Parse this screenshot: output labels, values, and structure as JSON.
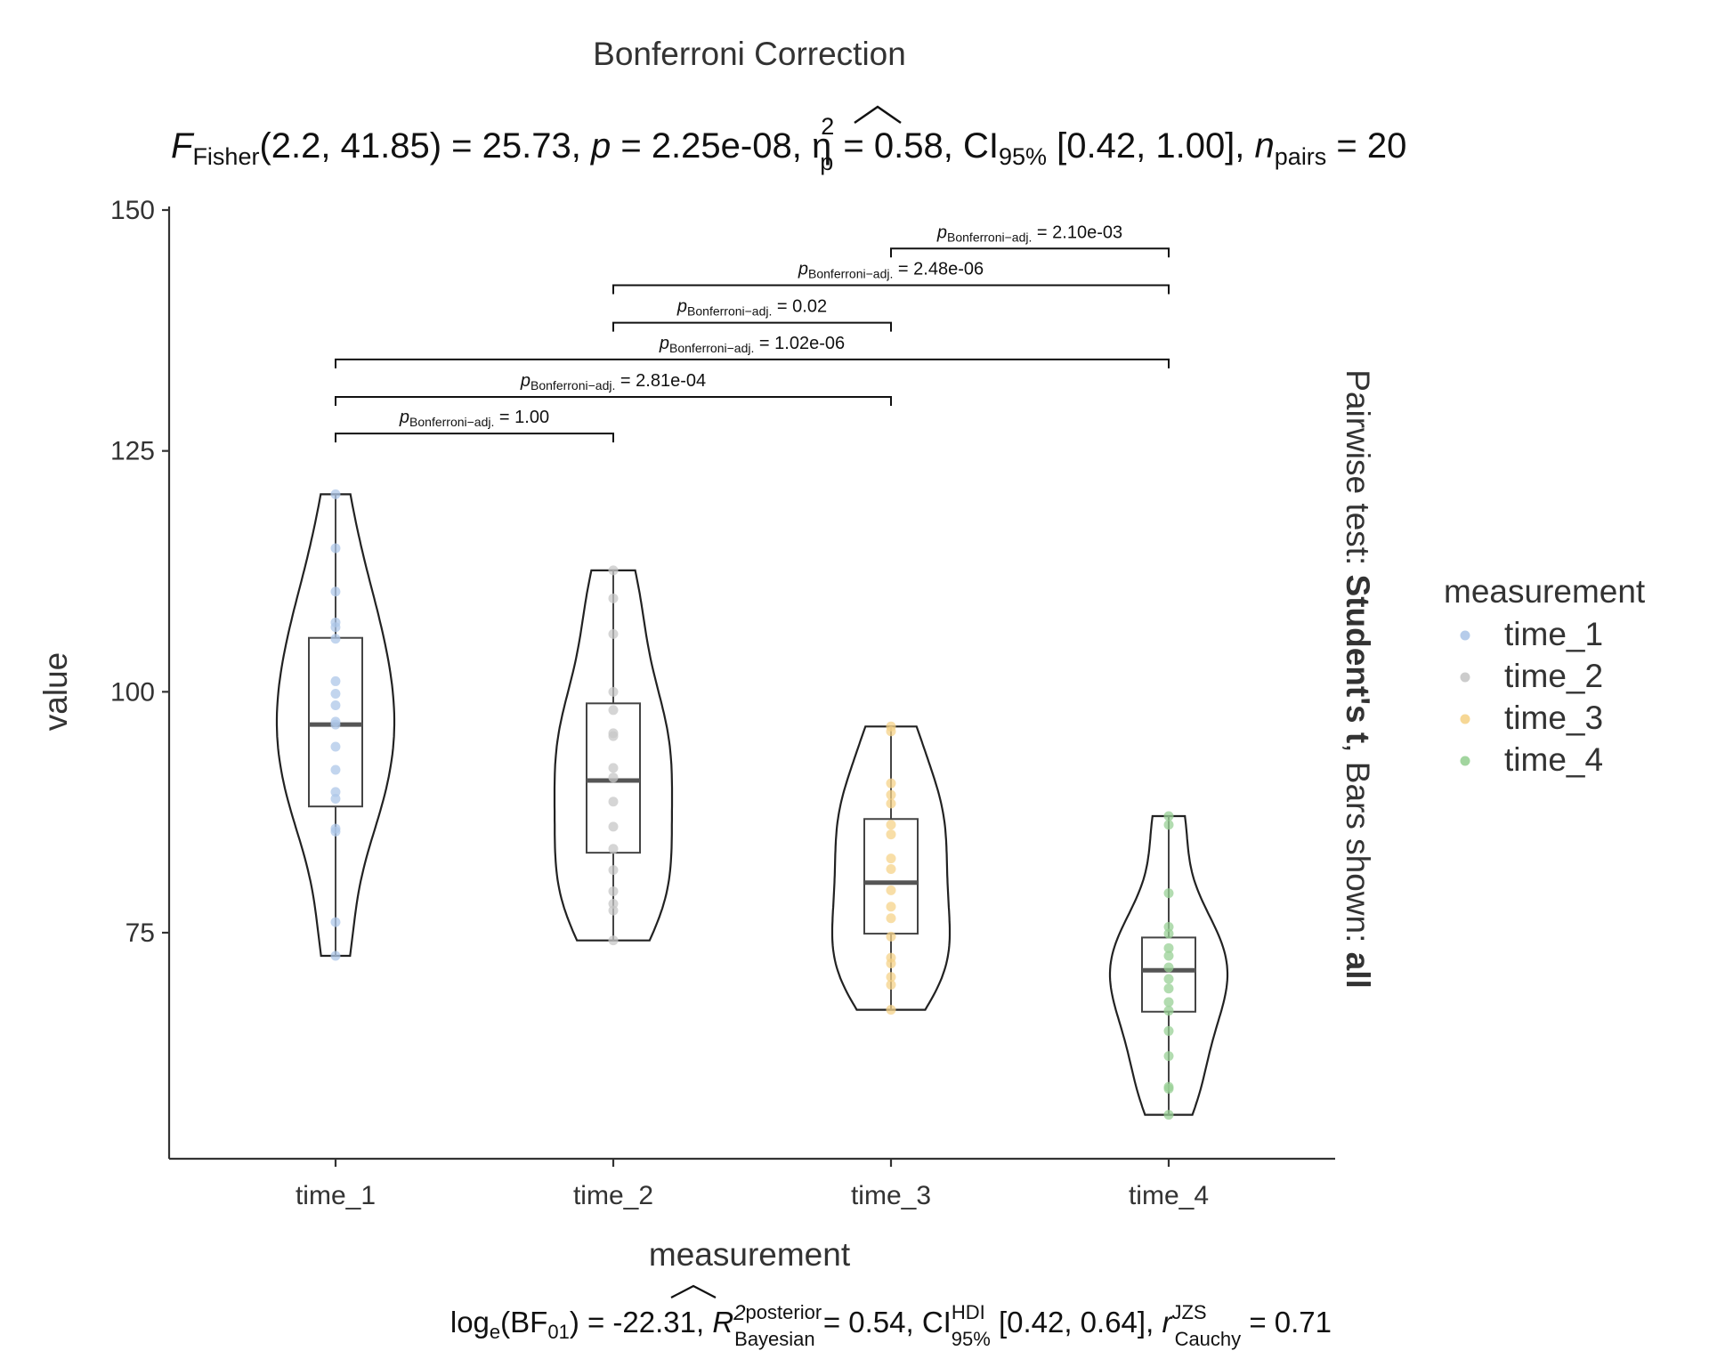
{
  "chart_data": {
    "type": "violin",
    "title": "Bonferroni Correction",
    "subtitle": {
      "statistic_symbol": "F",
      "statistic_sub": "Fisher",
      "df": "(2.2, 41.85)",
      "statistic_value": "25.73",
      "p_symbol": "p",
      "p_value": "2.25e-08",
      "effect_symbol": "η",
      "effect_sup": "2",
      "effect_sub": "p",
      "effect_value": "0.58",
      "ci_label": "CI",
      "ci_sub": "95%",
      "ci_range": "[0.42, 1.00]",
      "n_symbol": "n",
      "n_sub": "pairs",
      "n_value": "20"
    },
    "caption": {
      "bf_prefix": "log",
      "bf_base": "e",
      "bf_label": "BF",
      "bf_sub": "01",
      "bf_value": "-22.31",
      "r2_symbol": "R",
      "r2_sup": "2",
      "r2_sup_word": "posterior",
      "r2_sub": "Bayesian",
      "r2_value": "0.54",
      "ci_label": "CI",
      "ci_sup": "HDI",
      "ci_sub": "95%",
      "ci_range": "[0.42, 0.64]",
      "r_symbol": "r",
      "r_sup": "JZS",
      "r_sub": "Cauchy",
      "r_value": "0.71"
    },
    "xlabel": "measurement",
    "ylabel": "value",
    "ylim": [
      56,
      150
    ],
    "yticks": [
      75,
      100,
      125,
      150
    ],
    "categories": [
      "time_1",
      "time_2",
      "time_3",
      "time_4"
    ],
    "colors": [
      "#aec7e8",
      "#c7c7c7",
      "#f5d38a",
      "#98d095"
    ],
    "legend": {
      "title": "measurement",
      "position": "right",
      "items": [
        "time_1",
        "time_2",
        "time_3",
        "time_4"
      ]
    },
    "right_label": {
      "part1": "Pairwise test: ",
      "part2": "Student's t",
      "part3": ", Bars shown: ",
      "part4": "all"
    },
    "series": [
      {
        "name": "time_1",
        "box": {
          "q1": 88.1,
          "median": 96.6,
          "q3": 105.6,
          "whisker_low": 72.6,
          "whisker_high": 120.5
        },
        "points": [
          120.5,
          114.9,
          110.4,
          107.2,
          106.7,
          105.5,
          101.1,
          99.8,
          98.6,
          96.9,
          96.6,
          94.3,
          91.9,
          89.6,
          88.9,
          85.8,
          85.5,
          76.1,
          72.6
        ]
      },
      {
        "name": "time_2",
        "box": {
          "q1": 83.3,
          "median": 90.8,
          "q3": 98.8,
          "whisker_low": 74.2,
          "whisker_high": 112.6
        },
        "points": [
          112.6,
          109.7,
          106.0,
          100.0,
          98.1,
          95.7,
          95.4,
          92.1,
          91.1,
          88.6,
          86.0,
          83.7,
          81.5,
          79.3,
          78.0,
          77.3,
          74.2
        ]
      },
      {
        "name": "time_3",
        "box": {
          "q1": 74.9,
          "median": 80.2,
          "q3": 86.8,
          "whisker_low": 67.0,
          "whisker_high": 96.4
        },
        "points": [
          96.4,
          95.9,
          90.5,
          89.3,
          88.4,
          86.2,
          85.2,
          82.7,
          81.6,
          79.4,
          77.7,
          76.5,
          74.6,
          72.4,
          71.8,
          70.4,
          69.6,
          67.0
        ]
      },
      {
        "name": "time_4",
        "box": {
          "q1": 66.8,
          "median": 71.1,
          "q3": 74.5,
          "whisker_low": 56.1,
          "whisker_high": 87.1
        },
        "points": [
          87.1,
          86.2,
          79.1,
          75.6,
          74.9,
          73.4,
          72.6,
          71.4,
          70.2,
          69.2,
          67.8,
          66.9,
          64.8,
          62.2,
          59.0,
          58.8,
          56.1
        ]
      }
    ],
    "comparisons": [
      {
        "from": "time_1",
        "to": "time_2",
        "y": 126.8,
        "label_prefix": "p",
        "label_sub": "Bonferroni−adj.",
        "label_value": "1.00"
      },
      {
        "from": "time_1",
        "to": "time_3",
        "y": 130.6,
        "label_prefix": "p",
        "label_sub": "Bonferroni−adj.",
        "label_value": "2.81e-04"
      },
      {
        "from": "time_1",
        "to": "time_4",
        "y": 134.5,
        "label_prefix": "p",
        "label_sub": "Bonferroni−adj.",
        "label_value": "1.02e-06"
      },
      {
        "from": "time_2",
        "to": "time_3",
        "y": 138.3,
        "label_prefix": "p",
        "label_sub": "Bonferroni−adj.",
        "label_value": "0.02"
      },
      {
        "from": "time_2",
        "to": "time_4",
        "y": 142.2,
        "label_prefix": "p",
        "label_sub": "Bonferroni−adj.",
        "label_value": "2.48e-06"
      },
      {
        "from": "time_3",
        "to": "time_4",
        "y": 146.0,
        "label_prefix": "p",
        "label_sub": "Bonferroni−adj.",
        "label_value": "2.10e-03"
      }
    ]
  }
}
